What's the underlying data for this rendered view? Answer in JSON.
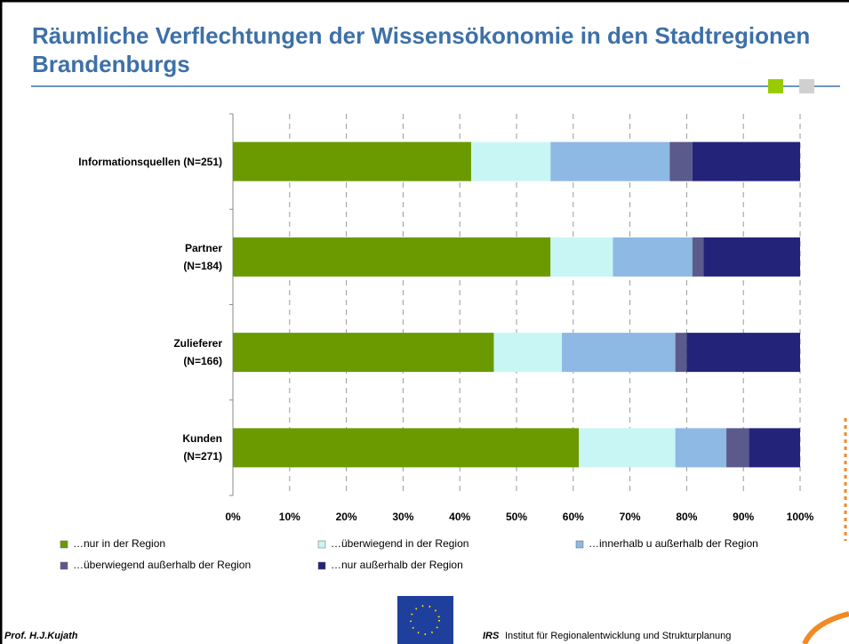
{
  "chart_data": {
    "type": "stacked_barh",
    "title": "Räumliche Verflechtungen der Wissensökonomie in den Stadtregionen Brandenburgs",
    "categories": [
      "Informationsquellen (N=251)",
      "Partner\n(N=184)",
      "Zulieferer\n(N=166)",
      "Kunden\n(N=271)"
    ],
    "series": [
      {
        "name": "…nur in der Region",
        "color": "#6a9a00",
        "values": [
          42,
          56,
          46,
          61
        ]
      },
      {
        "name": "…überwiegend in der Region",
        "color": "#c8f6f4",
        "values": [
          14,
          11,
          12,
          17
        ]
      },
      {
        "name": "…innerhalb u außerhalb der Region",
        "color": "#8db9e4",
        "values": [
          21,
          14,
          20,
          9
        ]
      },
      {
        "name": "…überwiegend außerhalb der Region",
        "color": "#5b5a8c",
        "values": [
          4,
          2,
          2,
          4
        ]
      },
      {
        "name": "…nur außerhalb der Region",
        "color": "#24237a",
        "values": [
          19,
          17,
          20,
          9
        ]
      }
    ],
    "xlim": [
      0,
      100
    ],
    "xticks": [
      {
        "value": 0,
        "label": "0%"
      },
      {
        "value": 10,
        "label": "10%"
      },
      {
        "value": 20,
        "label": "20%"
      },
      {
        "value": 30,
        "label": "30%"
      },
      {
        "value": 40,
        "label": "40%"
      },
      {
        "value": 50,
        "label": "50%"
      },
      {
        "value": 60,
        "label": "60%"
      },
      {
        "value": 70,
        "label": "70%"
      },
      {
        "value": 80,
        "label": "80%"
      },
      {
        "value": 90,
        "label": "90%"
      },
      {
        "value": 100,
        "label": "100%"
      }
    ],
    "grid": true
  },
  "footer": {
    "author": "Prof. H.J.Kujath",
    "institute_short": "IRS",
    "institute": "Institut für Regionalentwicklung und Strukturplanung"
  }
}
